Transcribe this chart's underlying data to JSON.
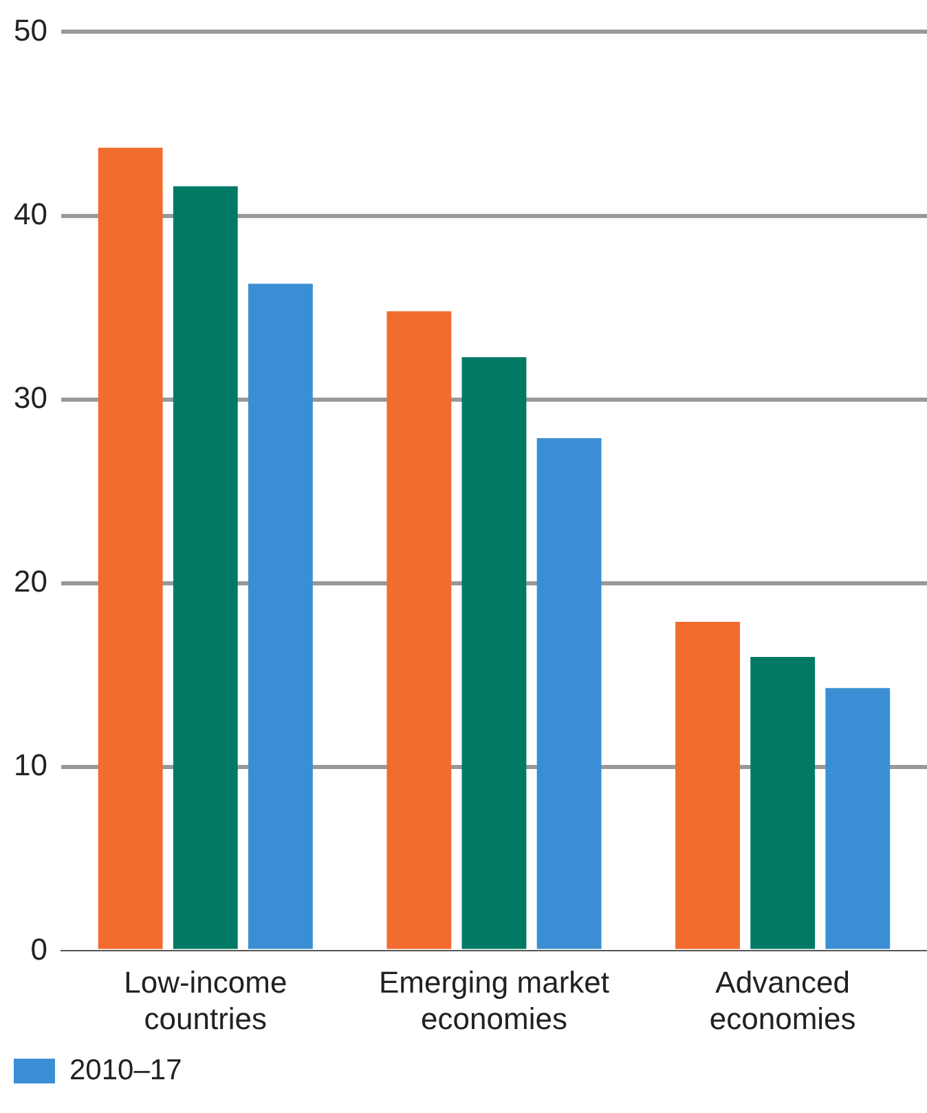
{
  "chart_data": {
    "type": "bar",
    "categories": [
      "Low-income countries",
      "Emerging market economies",
      "Advanced economies"
    ],
    "series": [
      {
        "color": "#f26b2f",
        "values": [
          43.7,
          34.8,
          17.9
        ]
      },
      {
        "color": "#007a65",
        "values": [
          41.6,
          32.3,
          16.0
        ]
      },
      {
        "name": "2010–17",
        "color": "#3a8fd4",
        "values": [
          36.3,
          27.9,
          14.3
        ]
      }
    ],
    "ylim": [
      0,
      50
    ],
    "yticks": [
      0,
      10,
      20,
      30,
      40,
      50
    ],
    "grid": "y",
    "legend": "bottom left"
  }
}
